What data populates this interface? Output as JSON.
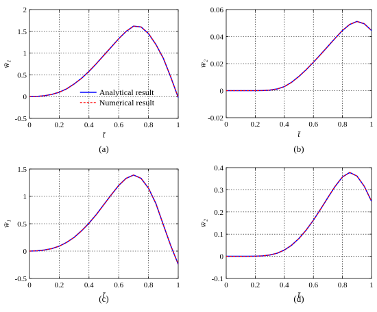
{
  "figure": {
    "colors": {
      "analytical": "#0000ff",
      "numerical": "#ff0000",
      "grid": "#000000"
    }
  },
  "chart_data": [
    {
      "id": "a",
      "type": "line",
      "caption": "(a)",
      "xlabel": "t̄",
      "ylabel": "w̄₁",
      "xlim": [
        0,
        1
      ],
      "ylim": [
        -0.5,
        2
      ],
      "xticks": [
        0,
        0.2,
        0.4,
        0.6,
        0.8,
        1
      ],
      "xtick_labels": [
        "0",
        "0.2",
        "0.4",
        "0.6",
        "0.8",
        "1"
      ],
      "yticks": [
        -0.5,
        0,
        0.5,
        1,
        1.5,
        2
      ],
      "ytick_labels": [
        "-0.5",
        "0",
        "0.5",
        "1",
        "1.5",
        "2"
      ],
      "grid": true,
      "legend": {
        "placement": "center-right",
        "entries": [
          "Analytical result",
          "Numerical result"
        ]
      },
      "x": [
        0,
        0.05,
        0.1,
        0.15,
        0.2,
        0.25,
        0.3,
        0.35,
        0.4,
        0.45,
        0.5,
        0.55,
        0.6,
        0.65,
        0.7,
        0.75,
        0.8,
        0.85,
        0.9,
        0.95,
        1.0
      ],
      "series": [
        {
          "name": "Analytical result",
          "style": "solid",
          "values": [
            0,
            0.005,
            0.02,
            0.05,
            0.1,
            0.18,
            0.29,
            0.42,
            0.58,
            0.76,
            0.95,
            1.14,
            1.33,
            1.5,
            1.62,
            1.6,
            1.45,
            1.2,
            0.88,
            0.45,
            -0.02
          ]
        },
        {
          "name": "Numerical result",
          "style": "dashed",
          "values": [
            0,
            0.005,
            0.02,
            0.05,
            0.1,
            0.18,
            0.29,
            0.42,
            0.58,
            0.76,
            0.95,
            1.14,
            1.33,
            1.5,
            1.62,
            1.6,
            1.45,
            1.2,
            0.88,
            0.45,
            -0.02
          ]
        }
      ]
    },
    {
      "id": "b",
      "type": "line",
      "caption": "(b)",
      "xlabel": "t̄",
      "ylabel": "w̄₂",
      "xlim": [
        0,
        1
      ],
      "ylim": [
        -0.02,
        0.06
      ],
      "xticks": [
        0,
        0.2,
        0.4,
        0.6,
        0.8,
        1
      ],
      "xtick_labels": [
        "0",
        "0.2",
        "0.4",
        "0.6",
        "0.8",
        "1"
      ],
      "yticks": [
        -0.02,
        0,
        0.02,
        0.04,
        0.06
      ],
      "ytick_labels": [
        "-0.02",
        "0",
        "0.02",
        "0.04",
        "0.06"
      ],
      "grid": true,
      "x": [
        0,
        0.05,
        0.1,
        0.15,
        0.2,
        0.25,
        0.3,
        0.35,
        0.4,
        0.45,
        0.5,
        0.55,
        0.6,
        0.65,
        0.7,
        0.75,
        0.8,
        0.85,
        0.9,
        0.95,
        1.0
      ],
      "series": [
        {
          "name": "Analytical result",
          "style": "solid",
          "values": [
            0,
            0,
            0,
            0,
            0,
            0.0001,
            0.0004,
            0.0012,
            0.003,
            0.0062,
            0.0105,
            0.0155,
            0.021,
            0.0268,
            0.0328,
            0.0388,
            0.0445,
            0.049,
            0.0512,
            0.0495,
            0.0445
          ]
        },
        {
          "name": "Numerical result",
          "style": "dashed",
          "values": [
            0,
            0,
            0,
            0,
            0,
            0.0001,
            0.0004,
            0.0012,
            0.003,
            0.0062,
            0.0105,
            0.0155,
            0.021,
            0.0268,
            0.0328,
            0.0388,
            0.0445,
            0.049,
            0.0512,
            0.0495,
            0.0445
          ]
        }
      ]
    },
    {
      "id": "c",
      "type": "line",
      "caption": "(c)",
      "xlabel": "t̄",
      "ylabel": "w̄₁",
      "xlim": [
        0,
        1
      ],
      "ylim": [
        -0.5,
        1.5
      ],
      "xticks": [
        0,
        0.2,
        0.4,
        0.6,
        0.8,
        1
      ],
      "xtick_labels": [
        "0",
        "0.2",
        "0.4",
        "0.6",
        "0.8",
        "1"
      ],
      "yticks": [
        -0.5,
        0,
        0.5,
        1,
        1.5
      ],
      "ytick_labels": [
        "-0.5",
        "0",
        "0.5",
        "1",
        "1.5"
      ],
      "grid": true,
      "x": [
        0,
        0.05,
        0.1,
        0.15,
        0.2,
        0.25,
        0.3,
        0.35,
        0.4,
        0.45,
        0.5,
        0.55,
        0.6,
        0.65,
        0.7,
        0.75,
        0.8,
        0.85,
        0.9,
        0.95,
        1.0
      ],
      "series": [
        {
          "name": "Analytical result",
          "style": "solid",
          "values": [
            0,
            0.005,
            0.02,
            0.045,
            0.09,
            0.16,
            0.25,
            0.37,
            0.51,
            0.67,
            0.85,
            1.03,
            1.2,
            1.33,
            1.39,
            1.33,
            1.15,
            0.87,
            0.48,
            0.1,
            -0.24
          ]
        },
        {
          "name": "Numerical result",
          "style": "dashed",
          "values": [
            0,
            0.005,
            0.02,
            0.045,
            0.09,
            0.16,
            0.25,
            0.37,
            0.51,
            0.67,
            0.85,
            1.03,
            1.2,
            1.33,
            1.39,
            1.33,
            1.15,
            0.87,
            0.48,
            0.1,
            -0.24
          ]
        }
      ]
    },
    {
      "id": "d",
      "type": "line",
      "caption": "(d)",
      "xlabel": "t̄",
      "ylabel": "w̄₂",
      "xlim": [
        0,
        1
      ],
      "ylim": [
        -0.1,
        0.4
      ],
      "xticks": [
        0,
        0.2,
        0.4,
        0.6,
        0.8,
        1
      ],
      "xtick_labels": [
        "0",
        "0.2",
        "0.4",
        "0.6",
        "0.8",
        "1"
      ],
      "yticks": [
        -0.1,
        0,
        0.1,
        0.2,
        0.3,
        0.4
      ],
      "ytick_labels": [
        "-0.1",
        "0",
        "0.1",
        "0.2",
        "0.3",
        "0.4"
      ],
      "grid": true,
      "x": [
        0,
        0.05,
        0.1,
        0.15,
        0.2,
        0.25,
        0.3,
        0.35,
        0.4,
        0.45,
        0.5,
        0.55,
        0.6,
        0.65,
        0.7,
        0.75,
        0.8,
        0.85,
        0.9,
        0.95,
        1.0
      ],
      "series": [
        {
          "name": "Analytical result",
          "style": "solid",
          "values": [
            0,
            0,
            0,
            0,
            0.0005,
            0.002,
            0.006,
            0.014,
            0.028,
            0.05,
            0.08,
            0.118,
            0.163,
            0.213,
            0.265,
            0.316,
            0.358,
            0.378,
            0.362,
            0.316,
            0.248
          ]
        },
        {
          "name": "Numerical result",
          "style": "dashed",
          "values": [
            0,
            0,
            0,
            0,
            0.0005,
            0.002,
            0.006,
            0.014,
            0.028,
            0.05,
            0.08,
            0.118,
            0.163,
            0.213,
            0.265,
            0.316,
            0.358,
            0.378,
            0.362,
            0.316,
            0.248
          ]
        }
      ]
    }
  ]
}
